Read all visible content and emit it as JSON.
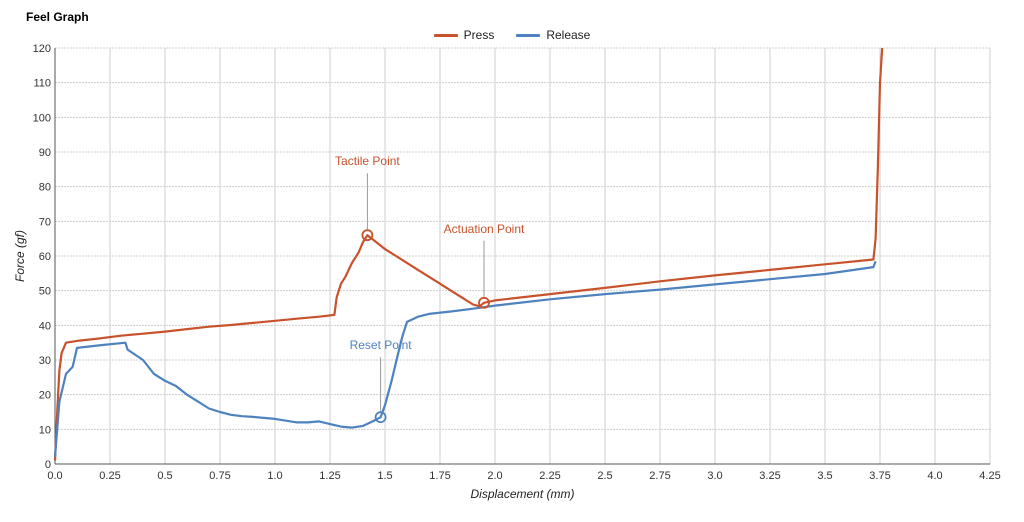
{
  "chart_data": {
    "type": "line",
    "title": "Feel Graph",
    "xlabel": "Displacement (mm)",
    "ylabel": "Force (gf)",
    "xlim": [
      0,
      4.25
    ],
    "ylim": [
      0,
      120
    ],
    "xticks": [
      "0.0",
      "0.25",
      "0.5",
      "0.75",
      "1.0",
      "1.25",
      "1.5",
      "1.75",
      "2.0",
      "2.25",
      "2.5",
      "2.75",
      "3.0",
      "3.25",
      "3.5",
      "3.75",
      "4.0",
      "4.25"
    ],
    "yticks": [
      "0",
      "10",
      "20",
      "30",
      "40",
      "50",
      "60",
      "70",
      "80",
      "90",
      "100",
      "110",
      "120"
    ],
    "grid": true,
    "legend_position": "top-center",
    "series": [
      {
        "name": "Press",
        "color": "#c8522c",
        "points": [
          [
            0.0,
            1
          ],
          [
            0.01,
            15
          ],
          [
            0.02,
            27
          ],
          [
            0.03,
            32
          ],
          [
            0.05,
            35
          ],
          [
            0.1,
            35.5
          ],
          [
            0.2,
            36.2
          ],
          [
            0.3,
            37
          ],
          [
            0.4,
            37.6
          ],
          [
            0.5,
            38.2
          ],
          [
            0.6,
            38.9
          ],
          [
            0.7,
            39.6
          ],
          [
            0.8,
            40.1
          ],
          [
            0.9,
            40.7
          ],
          [
            1.0,
            41.3
          ],
          [
            1.1,
            41.9
          ],
          [
            1.2,
            42.5
          ],
          [
            1.27,
            43
          ],
          [
            1.28,
            48
          ],
          [
            1.3,
            52
          ],
          [
            1.32,
            54
          ],
          [
            1.35,
            58
          ],
          [
            1.38,
            61
          ],
          [
            1.4,
            64
          ],
          [
            1.42,
            66
          ],
          [
            1.45,
            64.5
          ],
          [
            1.5,
            62
          ],
          [
            1.55,
            60
          ],
          [
            1.6,
            58
          ],
          [
            1.65,
            56
          ],
          [
            1.7,
            54
          ],
          [
            1.75,
            52
          ],
          [
            1.8,
            50
          ],
          [
            1.85,
            48
          ],
          [
            1.9,
            46
          ],
          [
            1.93,
            45.5
          ],
          [
            1.95,
            46.5
          ],
          [
            2.0,
            47.2
          ],
          [
            2.25,
            49
          ],
          [
            2.5,
            50.8
          ],
          [
            2.75,
            52.7
          ],
          [
            3.0,
            54.4
          ],
          [
            3.25,
            56
          ],
          [
            3.5,
            57.6
          ],
          [
            3.72,
            59
          ],
          [
            3.73,
            65
          ],
          [
            3.74,
            85
          ],
          [
            3.75,
            110
          ],
          [
            3.76,
            120
          ]
        ]
      },
      {
        "name": "Release",
        "color": "#4e82bf",
        "points": [
          [
            0.0,
            2
          ],
          [
            0.02,
            18
          ],
          [
            0.05,
            26
          ],
          [
            0.08,
            28
          ],
          [
            0.1,
            33.5
          ],
          [
            0.2,
            34.2
          ],
          [
            0.32,
            35
          ],
          [
            0.33,
            33
          ],
          [
            0.4,
            30
          ],
          [
            0.45,
            26
          ],
          [
            0.5,
            24
          ],
          [
            0.55,
            22.5
          ],
          [
            0.6,
            20
          ],
          [
            0.65,
            18
          ],
          [
            0.7,
            16
          ],
          [
            0.75,
            15
          ],
          [
            0.8,
            14.2
          ],
          [
            0.85,
            13.8
          ],
          [
            0.9,
            13.6
          ],
          [
            1.0,
            13
          ],
          [
            1.05,
            12.5
          ],
          [
            1.1,
            12
          ],
          [
            1.15,
            12
          ],
          [
            1.2,
            12.3
          ],
          [
            1.25,
            11.5
          ],
          [
            1.3,
            10.8
          ],
          [
            1.35,
            10.5
          ],
          [
            1.4,
            11
          ],
          [
            1.45,
            12.5
          ],
          [
            1.48,
            13.5
          ],
          [
            1.5,
            17
          ],
          [
            1.53,
            24
          ],
          [
            1.56,
            32
          ],
          [
            1.58,
            37
          ],
          [
            1.6,
            41
          ],
          [
            1.65,
            42.5
          ],
          [
            1.7,
            43.3
          ],
          [
            1.8,
            44
          ],
          [
            1.9,
            44.8
          ],
          [
            2.0,
            45.7
          ],
          [
            2.25,
            47.5
          ],
          [
            2.5,
            49
          ],
          [
            2.75,
            50.3
          ],
          [
            3.0,
            51.8
          ],
          [
            3.25,
            53.3
          ],
          [
            3.5,
            54.8
          ],
          [
            3.72,
            56.8
          ],
          [
            3.73,
            58.5
          ]
        ]
      }
    ],
    "annotations": [
      {
        "label": "Tactile Point",
        "series": "Press",
        "x": 1.42,
        "y": 66,
        "color": "#c8522c"
      },
      {
        "label": "Actuation Point",
        "series": "Press",
        "x": 1.95,
        "y": 46.5,
        "color": "#c8522c"
      },
      {
        "label": "Reset Point",
        "series": "Release",
        "x": 1.48,
        "y": 13.5,
        "color": "#4e82bf"
      }
    ]
  }
}
